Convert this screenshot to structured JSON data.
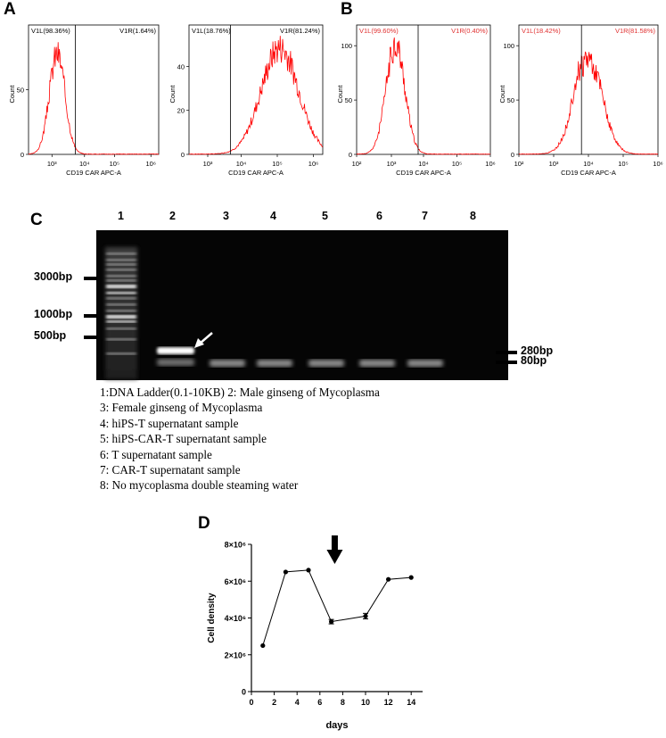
{
  "panels": {
    "a": "A",
    "b": "B",
    "c": "C",
    "d": "D"
  },
  "flow": [
    {
      "id": "a1",
      "color": "#ff0000",
      "gate_color": "#000000",
      "left_label": "V1L(98.36%)",
      "right_label": "V1R(1.64%)",
      "ylabel": "Count",
      "xlabel": "CD19 CAR APC-A",
      "yticks": [
        "0",
        "50"
      ],
      "xticks": [
        "10³",
        "10⁴",
        "10⁵",
        "10⁶"
      ]
    },
    {
      "id": "a2",
      "color": "#ff0000",
      "gate_color": "#000000",
      "left_label": "V1L(18.76%)",
      "right_label": "V1R(81.24%)",
      "ylabel": "Count",
      "xlabel": "CD19 CAR APC-A",
      "yticks": [
        "0",
        "20",
        "40"
      ],
      "xticks": [
        "10³",
        "10⁴",
        "10⁵",
        "10⁶"
      ]
    },
    {
      "id": "b1",
      "color": "#ff0000",
      "gate_color": "#000000",
      "left_label": "V1L(99.60%)",
      "right_label": "V1R(0.40%)",
      "ylabel": "Count",
      "xlabel": "CD19 CAR APC-A",
      "yticks": [
        "0",
        "50",
        "100"
      ],
      "xticks": [
        "10²",
        "10³",
        "10⁴",
        "10⁵",
        "10⁶"
      ]
    },
    {
      "id": "b2",
      "color": "#ff0000",
      "gate_color": "#000000",
      "left_label": "V1L(18.42%)",
      "right_label": "V1R(81.58%)",
      "ylabel": "Count",
      "xlabel": "CD19 CAR APC-A",
      "yticks": [
        "0",
        "50",
        "100"
      ],
      "xticks": [
        "10²",
        "10³",
        "10⁴",
        "10⁵",
        "10⁶"
      ]
    }
  ],
  "gel": {
    "lanes": [
      "1",
      "2",
      "3",
      "4",
      "5",
      "6",
      "7",
      "8"
    ],
    "left_markers": [
      "3000bp",
      "1000bp",
      "500bp"
    ],
    "right_markers": [
      "280bp",
      "80bp"
    ],
    "legend": [
      "1:DNA Ladder(0.1-10KB)  2: Male ginseng of Mycoplasma",
      "3: Female ginseng of Mycoplasma",
      "4: hiPS-T supernatant sample",
      "5: hiPS-CAR-T supernatant sample",
      "6: T supernatant sample",
      "7: CAR-T supernatant sample",
      "8: No mycoplasma double steaming water"
    ]
  },
  "chart_data": {
    "type": "line",
    "xlabel": "days",
    "ylabel": "Cell density",
    "x": [
      1,
      3,
      5,
      7,
      10,
      12,
      14
    ],
    "y": [
      2500000,
      6500000,
      6600000,
      3800000,
      4100000,
      6100000,
      6200000
    ],
    "error": [
      0,
      0,
      0,
      120000,
      150000,
      0,
      0
    ],
    "xlim": [
      0,
      15
    ],
    "ylim": [
      0,
      8000000
    ],
    "xticks": [
      "0",
      "2",
      "4",
      "6",
      "8",
      "10",
      "12",
      "14"
    ],
    "yticks": [
      "0",
      "2×10⁶",
      "4×10⁶",
      "6×10⁶",
      "8×10⁶"
    ],
    "arrow_at_x": 7.3
  }
}
